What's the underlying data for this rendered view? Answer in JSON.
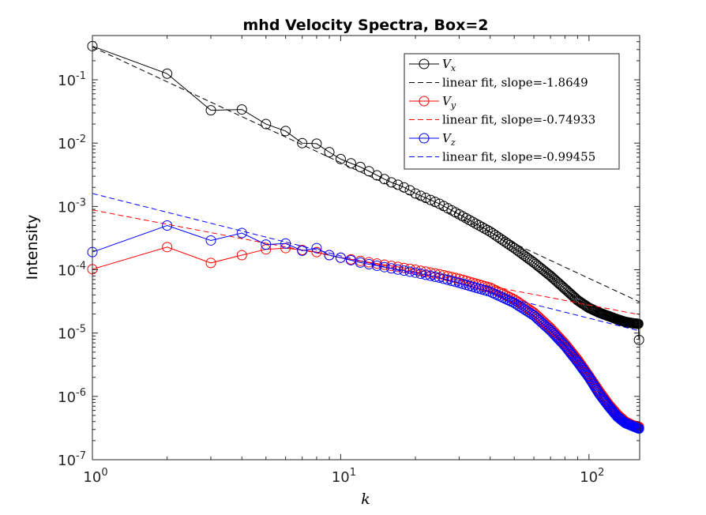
{
  "chart_data": {
    "type": "line",
    "title": "mhd Velocity Spectra, Box=2",
    "xlabel": "k",
    "ylabel": "Intensity",
    "xscale": "log",
    "yscale": "log",
    "xlim": [
      1,
      160
    ],
    "ylim": [
      1e-07,
      0.5
    ],
    "xticks": [
      {
        "value": 1,
        "base": "10",
        "exp": "0"
      },
      {
        "value": 10,
        "base": "10",
        "exp": "1"
      },
      {
        "value": 100,
        "base": "10",
        "exp": "2"
      }
    ],
    "yticks": [
      {
        "value": 1e-07,
        "base": "10",
        "exp": "-7"
      },
      {
        "value": 1e-06,
        "base": "10",
        "exp": "-6"
      },
      {
        "value": 1e-05,
        "base": "10",
        "exp": "-5"
      },
      {
        "value": 0.0001,
        "base": "10",
        "exp": "-4"
      },
      {
        "value": 0.001,
        "base": "10",
        "exp": "-3"
      },
      {
        "value": 0.01,
        "base": "10",
        "exp": "-2"
      },
      {
        "value": 0.1,
        "base": "10",
        "exp": "-1"
      }
    ],
    "grid": false,
    "legend_position": "top-right",
    "series": [
      {
        "name_main": "V",
        "name_sub": "x",
        "color": "#000000",
        "style": "solid-circle",
        "anchors": [
          [
            1,
            0.34
          ],
          [
            2,
            0.125
          ],
          [
            3,
            0.033
          ],
          [
            4,
            0.034
          ],
          [
            5,
            0.02
          ],
          [
            6,
            0.0155
          ],
          [
            7,
            0.01
          ],
          [
            8,
            0.0098
          ],
          [
            9,
            0.0072
          ],
          [
            10,
            0.0056
          ],
          [
            11,
            0.0048
          ],
          [
            12,
            0.0042
          ],
          [
            13,
            0.0036
          ],
          [
            14,
            0.0031
          ],
          [
            15,
            0.0027
          ],
          [
            16,
            0.0024
          ],
          [
            17,
            0.0022
          ],
          [
            18,
            0.002
          ],
          [
            19,
            0.0018
          ],
          [
            20,
            0.0016
          ],
          [
            25,
            0.0011
          ],
          [
            30,
            0.00075
          ],
          [
            40,
            0.0004
          ],
          [
            50,
            0.00022
          ],
          [
            60,
            0.00013
          ],
          [
            70,
            8e-05
          ],
          [
            80,
            5e-05
          ],
          [
            90,
            3.3e-05
          ],
          [
            100,
            2.5e-05
          ],
          [
            110,
            2.1e-05
          ],
          [
            120,
            1.85e-05
          ],
          [
            130,
            1.65e-05
          ],
          [
            140,
            1.5e-05
          ],
          [
            150,
            1.43e-05
          ],
          [
            158,
            1.4e-05
          ],
          [
            159,
            7.8e-06
          ]
        ]
      },
      {
        "name": "linear fit, slope=-1.8649",
        "color": "#000000",
        "style": "dashed",
        "anchors": [
          [
            1,
            0.33
          ],
          [
            160,
            3.1e-05
          ]
        ]
      },
      {
        "name_main": "V",
        "name_sub": "y",
        "color": "#ff0000",
        "style": "solid-circle",
        "anchors": [
          [
            1,
            0.000102
          ],
          [
            2,
            0.000228
          ],
          [
            3,
            0.000128
          ],
          [
            4,
            0.00017
          ],
          [
            5,
            0.00021
          ],
          [
            6,
            0.00022
          ],
          [
            7,
            0.000205
          ],
          [
            8,
            0.00019
          ],
          [
            9,
            0.00017
          ],
          [
            10,
            0.000155
          ],
          [
            12,
            0.000138
          ],
          [
            15,
            0.00012
          ],
          [
            20,
            0.0001
          ],
          [
            25,
            8.5e-05
          ],
          [
            30,
            7.2e-05
          ],
          [
            40,
            5.2e-05
          ],
          [
            50,
            3.4e-05
          ],
          [
            60,
            2.1e-05
          ],
          [
            70,
            1.2e-05
          ],
          [
            80,
            6.8e-06
          ],
          [
            90,
            3.8e-06
          ],
          [
            100,
            2.1e-06
          ],
          [
            110,
            1.2e-06
          ],
          [
            120,
            7.5e-07
          ],
          [
            130,
            5.2e-07
          ],
          [
            140,
            4e-07
          ],
          [
            150,
            3.5e-07
          ],
          [
            159,
            3.3e-07
          ]
        ]
      },
      {
        "name": "linear fit, slope=-0.74933",
        "color": "#ff0000",
        "style": "dashed",
        "anchors": [
          [
            1,
            0.00088
          ],
          [
            160,
            1.95e-05
          ]
        ]
      },
      {
        "name_main": "V",
        "name_sub": "z",
        "color": "#0000ff",
        "style": "solid-circle",
        "anchors": [
          [
            1,
            0.00019
          ],
          [
            2,
            0.0005
          ],
          [
            3,
            0.00029
          ],
          [
            4,
            0.00038
          ],
          [
            5,
            0.00025
          ],
          [
            6,
            0.00026
          ],
          [
            7,
            0.0002
          ],
          [
            8,
            0.00022
          ],
          [
            9,
            0.00017
          ],
          [
            10,
            0.000155
          ],
          [
            12,
            0.00013
          ],
          [
            15,
            0.00011
          ],
          [
            20,
            9e-05
          ],
          [
            25,
            7.5e-05
          ],
          [
            30,
            6.2e-05
          ],
          [
            40,
            4.5e-05
          ],
          [
            50,
            3e-05
          ],
          [
            60,
            1.9e-05
          ],
          [
            70,
            1.1e-05
          ],
          [
            80,
            6.3e-06
          ],
          [
            90,
            3.5e-06
          ],
          [
            100,
            2e-06
          ],
          [
            110,
            1.1e-06
          ],
          [
            120,
            7e-07
          ],
          [
            130,
            4.8e-07
          ],
          [
            140,
            3.8e-07
          ],
          [
            150,
            3.4e-07
          ],
          [
            159,
            3.1e-07
          ]
        ]
      },
      {
        "name": "linear fit, slope=-0.99455",
        "color": "#0000ff",
        "style": "dashed",
        "anchors": [
          [
            1,
            0.0016
          ],
          [
            160,
            1.08e-05
          ]
        ]
      }
    ]
  }
}
